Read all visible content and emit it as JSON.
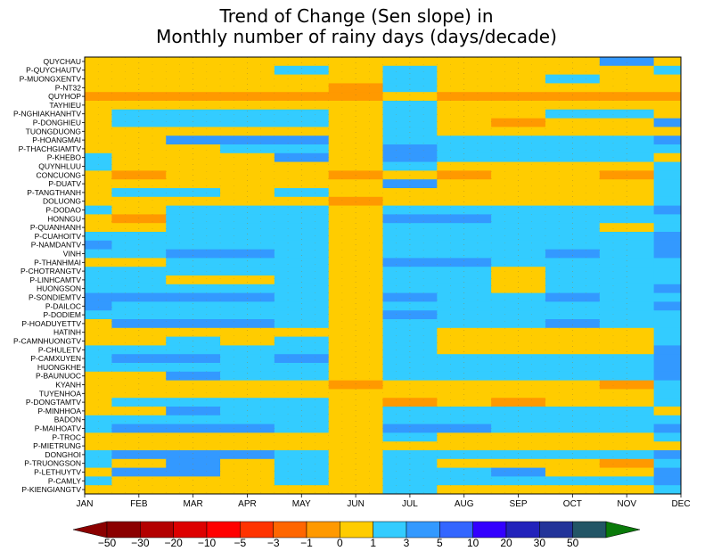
{
  "chart_data": {
    "type": "heatmap",
    "title": "Trend of Change (Sen slope) in\nMonthly number of rainy days (days/decade)",
    "x_labels": [
      "JAN",
      "FEB",
      "MAR",
      "APR",
      "MAY",
      "JUN",
      "JUL",
      "AUG",
      "SEP",
      "OCT",
      "NOV",
      "DEC"
    ],
    "y_labels": [
      "QUYCHAU",
      "P-QUYCHAUTV",
      "P-MUONGXENTV",
      "P-NT32",
      "QUYHOP",
      "TAYHIEU",
      "P-NGHIAKHANHTV",
      "P-DONGHIEU",
      "TUONGDUONG",
      "P-HOANGMAI",
      "P-THACHGIAMTV",
      "P-KHEBO",
      "QUYNHLUU",
      "CONCUONG",
      "P-DUATV",
      "P-TANGTHANH",
      "DOLUONG",
      "P-DODAO",
      "HONNGU",
      "P-QUANHANH",
      "P-CUAHOITV",
      "P-NAMDANTV",
      "VINH",
      "P-THANHMAI",
      "P-CHOTRANGTV",
      "P-LINHCAMTV",
      "HUONGSON",
      "P-SONDIEMTV",
      "P-DAILOC",
      "P-DODIEM",
      "P-HOADUYETTV",
      "HATINH",
      "P-CAMNHUONGTV",
      "P-CHULETV",
      "P-CAMXUYEN",
      "HUONGKHE",
      "P-BAUNUOC",
      "KYANH",
      "TUYENHOA",
      "P-DONGTAMTV",
      "P-MINHHOA",
      "BADON",
      "P-MAIHOATV",
      "P-TROC",
      "P-MIETRUNG",
      "DONGHOI",
      "P-TRUONGSON",
      "P-LETHUYTV",
      "P-CAMLY",
      "P-KIENGIANGTV"
    ],
    "legend_labels": [
      "-50",
      "-30",
      "-20",
      "-10",
      "-5",
      "-3",
      "-1",
      "0",
      "1",
      "3",
      "5",
      "10",
      "20",
      "30",
      "50"
    ],
    "legend_colors": [
      "#8b0000",
      "#b30000",
      "#dd0000",
      "#ff0000",
      "#ff3300",
      "#ff6600",
      "#ff9900",
      "#ffcc00",
      "#33ccff",
      "#3399ff",
      "#3366ff",
      "#3300ff",
      "#2222bb",
      "#223399",
      "#225566"
    ],
    "legend_arrow_colors": [
      "#8b0000",
      "#0a7a0a"
    ],
    "codes": [
      "DDDDDDDDDDFD",
      "DDDDEDEDDDDE",
      "DDDDDDEDDEDD",
      "DDDDDCEDDDDD",
      "CCCCCCDCCCCC",
      "DDDDDDEDDDDD",
      "DEEEEDEDDEED",
      "DEEEEDEDCDDF",
      "DDDDDDEDDDDD",
      "DDFFFDEEEEEF",
      "DDDEEDFEEEEE",
      "EDDDFDFEEEED",
      "EDDDDDEDDDDE",
      "DCDDDCDCDDCE",
      "DDDDDDFDDDDE",
      "DEEDEDDDDDDE",
      "DDDDDCDDDDDE",
      "EDEEEDEEEEEF",
      "DCEEEDFFEEEE",
      "DDEEEDEEEEDE",
      "EEEEEDEEEEEF",
      "FEEEEDEEEEEF",
      "EEFFEDEEEFEF",
      "DDEEEDFFEEEE",
      "EEEEEDEEDEEE",
      "EEDDEDEEDEEE",
      "EEEEEDEEDEEF",
      "FFFFEDFEEFEE",
      "FEEEEDEEEEEF",
      "EEEEEDFEEEEE",
      "DFFFEDEEEFEE",
      "DDDDDDEDDDDE",
      "DDEDEDEDDDDE",
      "EEEEEDEDDDDF",
      "EFFEFDEEEEEF",
      "EEEEEDEEEEEF",
      "DDFEEDEEEEEF",
      "DDDDDCDDDDCE",
      "DDDDDDDDDDDE",
      "DEEEEDCDCDDE",
      "DDFEEDEEEEED",
      "EEEEEDEEEEEE",
      "EFFFEDFFEEEF",
      "DDDDDDEDDDDE",
      "DDDDDDDDDDDD",
      "EFFFEDEEEEEF",
      "EDFDEDEDDDCE",
      "DFFDEDEEFDDF",
      "EDDDEDEEEEEF",
      "DDDDDDEDDDDE"
    ],
    "code_colors": {
      "C": "#ff9900",
      "D": "#ffcc00",
      "E": "#33ccff",
      "F": "#3399ff"
    },
    "grid": "dotted",
    "legend_position": "bottom"
  }
}
